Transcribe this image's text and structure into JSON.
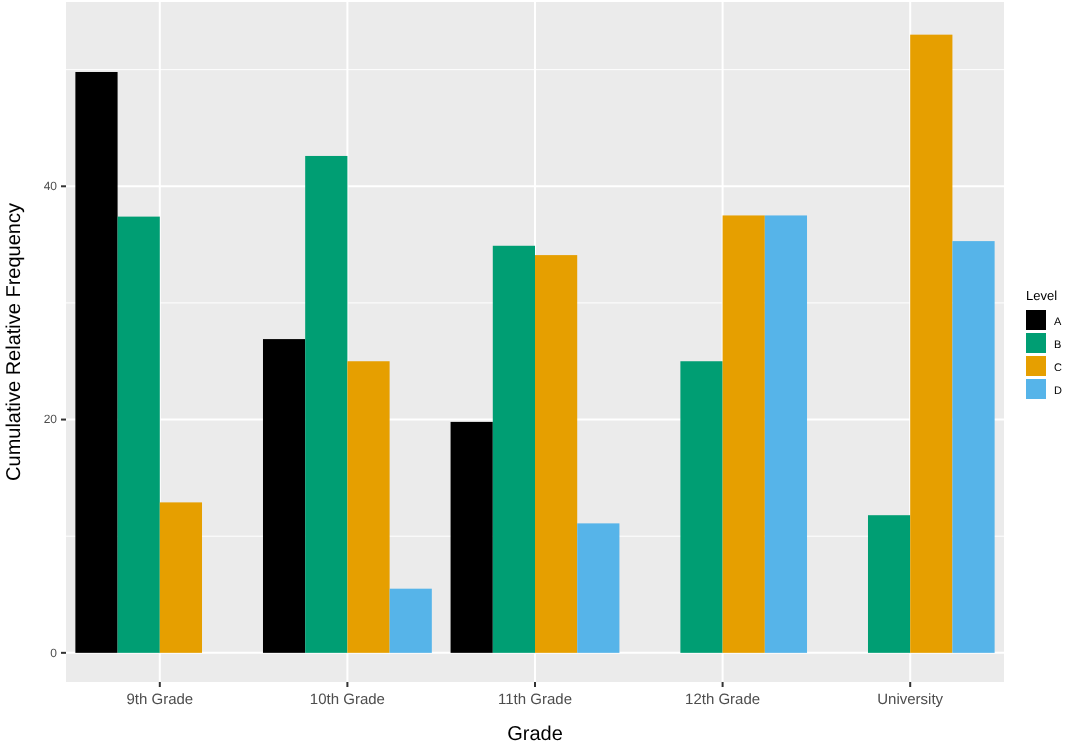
{
  "chart_data": {
    "type": "bar",
    "xlabel": "Grade",
    "ylabel": "Cumulative Relative Frequency",
    "legend_title": "Level",
    "categories": [
      "9th Grade",
      "10th Grade",
      "11th Grade",
      "12th Grade",
      "University"
    ],
    "series": [
      {
        "name": "A",
        "color": "#000000",
        "values": [
          49.8,
          26.9,
          19.8,
          null,
          null
        ]
      },
      {
        "name": "B",
        "color": "#009e73",
        "values": [
          37.4,
          42.6,
          34.9,
          25,
          11.8
        ]
      },
      {
        "name": "C",
        "color": "#e69f00",
        "values": [
          12.9,
          25,
          34.1,
          37.5,
          53
        ]
      },
      {
        "name": "D",
        "color": "#56b4e9",
        "values": [
          null,
          5.5,
          11.1,
          37.5,
          35.3
        ]
      }
    ],
    "ylim": [
      -2.5,
      55.8
    ],
    "yticks": [
      0,
      {
        "value": 10,
        "label": null
      },
      20,
      {
        "value": 30,
        "label": null
      },
      40,
      {
        "value": 50,
        "label": null
      }
    ],
    "grid": true,
    "legend": "right"
  }
}
